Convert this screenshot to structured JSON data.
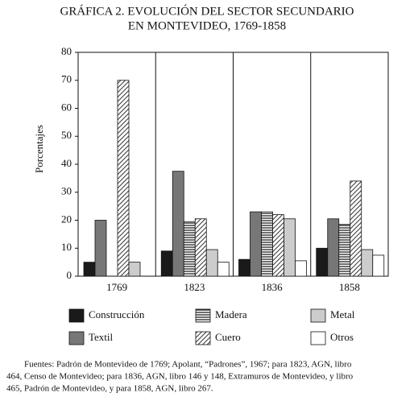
{
  "chart_data": {
    "type": "bar",
    "title": [
      "GRÁFICA 2. EVOLUCIÓN DEL SECTOR SECUNDARIO",
      "EN MONTEVIDEO, 1769-1858"
    ],
    "y_label": "Porcentajes",
    "categories": [
      "1769",
      "1823",
      "1836",
      "1858"
    ],
    "series": [
      {
        "name": "Construcción",
        "color": "#1a1a1a",
        "values": [
          5,
          9,
          6,
          10
        ]
      },
      {
        "name": "Textil",
        "color": "#777777",
        "values": [
          20,
          37.5,
          23,
          20.5
        ]
      },
      {
        "name": "Madera",
        "color": "#ffffff",
        "pattern": "horizontal",
        "values": [
          0,
          19.5,
          23,
          18.5
        ]
      },
      {
        "name": "Cuero",
        "color": "#ffffff",
        "pattern": "diagonal",
        "values": [
          70,
          20.5,
          22,
          34
        ]
      },
      {
        "name": "Metal",
        "color": "#cccccc",
        "values": [
          5,
          9.5,
          20.5,
          9.5
        ]
      },
      {
        "name": "Otros",
        "color": "#ffffff",
        "values": [
          0,
          5,
          5.5,
          7.5
        ]
      }
    ],
    "ylim": [
      0,
      80
    ],
    "yticks": [
      0,
      10,
      20,
      30,
      40,
      50,
      60,
      70,
      80
    ],
    "note": [
      "Fuentes: Padrón de Montevideo de 1769; Apolant, “Padrones”, 1967; para 1823, AGN, libro",
      "464, Censo de Montevideo; para 1836, AGN, libro 146 y 148, Extramuros de Montevideo, y libro",
      "465, Padrón de Montevideo, y para 1858, AGN, libro 267."
    ]
  }
}
